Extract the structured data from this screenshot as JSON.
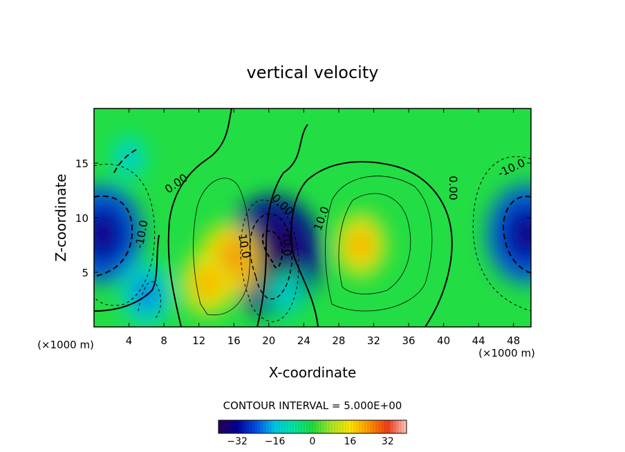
{
  "chart_data": {
    "type": "heatmap",
    "title": "vertical velocity",
    "xlabel": "X-coordinate",
    "ylabel": "Z-coordinate",
    "x_unit_label": "(×1000 m)",
    "y_unit_label": "(×1000 m)",
    "xlim": [
      0,
      50
    ],
    "ylim": [
      0,
      20
    ],
    "x_ticks": [
      4,
      8,
      12,
      16,
      20,
      24,
      28,
      32,
      36,
      40,
      44,
      48
    ],
    "y_ticks": [
      5,
      10,
      15
    ],
    "contour_interval_text": "CONTOUR INTERVAL = 5.000E+00",
    "contour_labels": [
      "0.00",
      "-10.0",
      "10.0",
      "0.00",
      "-10.0",
      "10.0",
      "0.00",
      "-10.0"
    ],
    "colorbar": {
      "range": [
        -40,
        40
      ],
      "ticks": [
        -32,
        -16,
        0,
        16,
        32
      ]
    },
    "features": [
      {
        "x": 1.0,
        "z": 8.5,
        "w": -30
      },
      {
        "x": 49.5,
        "z": 8.5,
        "w": -30
      },
      {
        "x": 6.0,
        "z": 3.0,
        "w": -18
      },
      {
        "x": 20.5,
        "z": 6.5,
        "w": -38
      },
      {
        "x": 15.5,
        "z": 6.0,
        "w": 22
      },
      {
        "x": 13.0,
        "z": 4.0,
        "w": 18
      },
      {
        "x": 30.5,
        "z": 7.5,
        "w": 18
      },
      {
        "x": 4.0,
        "z": 15.5,
        "w": -12
      },
      {
        "x": 22.0,
        "z": 3.0,
        "w": -12
      }
    ]
  }
}
